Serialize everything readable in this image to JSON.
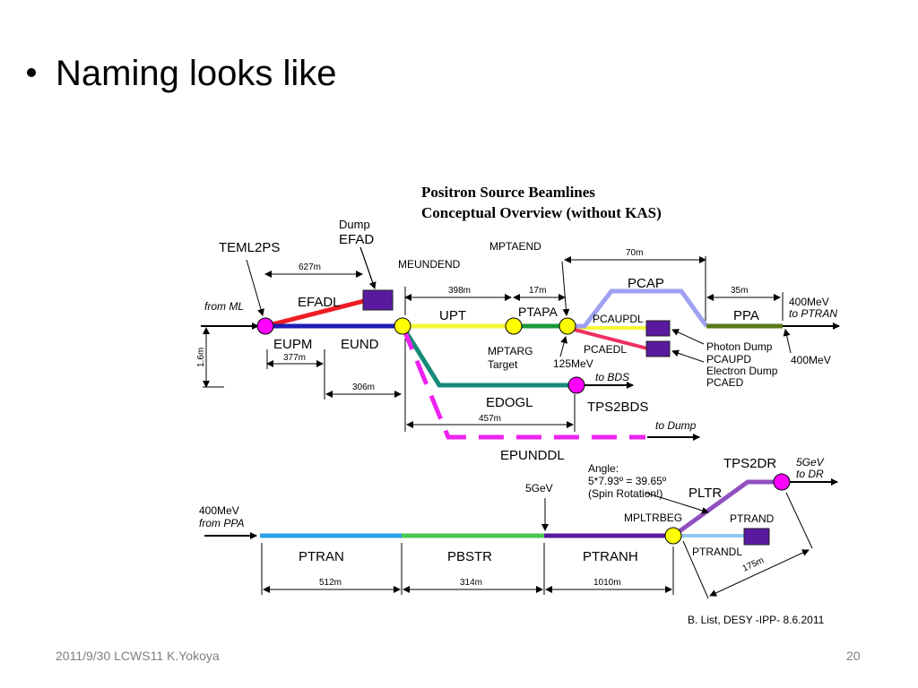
{
  "slide": {
    "bullet": "Naming looks like",
    "footer_left": "2011/9/30 LCWS11 K.Yokoya",
    "page_number": "20"
  },
  "diagram": {
    "title_line1": "Positron Source Beamlines",
    "title_line2": "Conceptual Overview (without KAS)",
    "credit": "B. List, DESY -IPP- 8.6.2011",
    "labels": {
      "dump": "Dump",
      "efad": "EFAD",
      "teml2ps": "TEML2PS",
      "meundend": "MEUNDEND",
      "mptaend": "MPTAEND",
      "pcap": "PCAP",
      "efadl": "EFADL",
      "from_ml": "from ML",
      "upt": "UPT",
      "ptapa": "PTAPA",
      "pcaupdl": "PCAUPDL",
      "ppa": "PPA",
      "e400_ptran": "400MeV",
      "to_ptran": "to PTRAN",
      "eupm": "EUPM",
      "eund": "EUND",
      "mptarg": "MPTARG",
      "target": "Target",
      "pcaedl": "PCAEDL",
      "photon_dump": "Photon Dump",
      "pcaupd": "PCAUPD",
      "electron_dump": "Electron Dump",
      "pcaed": "PCAED",
      "e400_right": "400MeV",
      "e125": "125MeV",
      "to_bds": "to BDS",
      "edogl": "EDOGL",
      "tps2bds": "TPS2BDS",
      "to_dump": "to Dump",
      "epunddl": "EPUNDDL",
      "angle": "Angle:",
      "angle_value": "5*7.93º = 39.65º",
      "spin_rotation": "(Spin Rotation!)",
      "tps2dr": "TPS2DR",
      "e5gev_dr": "5GeV",
      "to_dr": "to DR",
      "e5gev": "5GeV",
      "pltr": "PLTR",
      "e400_ppa": "400MeV",
      "from_ppa": "from PPA",
      "mpltrbeg": "MPLTRBEG",
      "ptrand": "PTRAND",
      "ptran": "PTRAN",
      "pbstr": "PBSTR",
      "ptranh": "PTRANH",
      "ptrandl": "PTRANDL"
    },
    "dimensions": {
      "d627": "627m",
      "d398": "398m",
      "d17": "17m",
      "d70": "70m",
      "d35": "35m",
      "d16": "1.6m",
      "d377": "377m",
      "d306": "306m",
      "d457": "457m",
      "d512": "512m",
      "d314": "314m",
      "d1010": "1010m",
      "d175": "175m"
    },
    "colors": {
      "efadl": "#ee1c24",
      "eund": "#1c1cb4",
      "upt": "#f5f53a",
      "green_line": "#1a9a3a",
      "pcap": "#a0a0f0",
      "ppa": "#5a7a1a",
      "edogl": "#178a78",
      "epunddl": "#ee22ee",
      "ptran": "#2aa0e8",
      "pbstr": "#4ac850",
      "ptranh": "#5a1aa0",
      "pltr": "#9050c0",
      "ptrandl": "#90c8f0",
      "pcaedl": "#ee3060",
      "dump_box": "#5a1aa0",
      "magenta_node": "#ff00ff",
      "yellow_node": "#ffff00"
    }
  }
}
